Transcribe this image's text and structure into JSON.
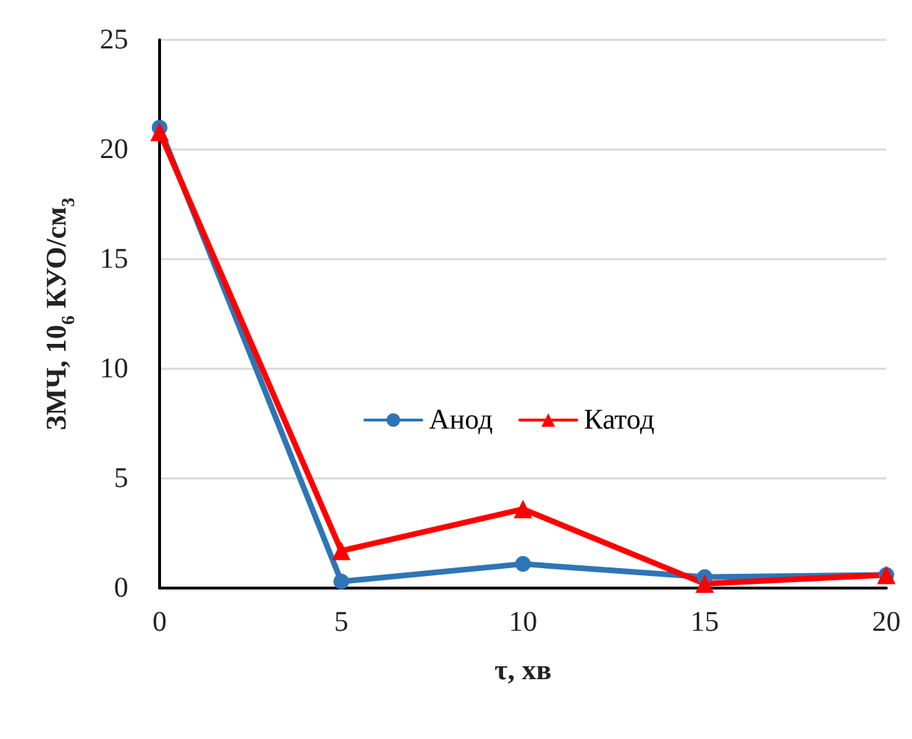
{
  "chart_data": {
    "type": "line",
    "xlabel": "τ, хв",
    "ylabel": "ЗМЧ, 10$_{6}$ КУО/см$_{3}$",
    "x": [
      0,
      5,
      10,
      15,
      20
    ],
    "series": [
      {
        "name": "Анод",
        "color": "#2e75b6",
        "values": [
          21,
          0.3,
          1.1,
          0.5,
          0.6
        ],
        "marker": "circle"
      },
      {
        "name": "Катод",
        "color": "#ff0000",
        "values": [
          20.8,
          1.7,
          3.6,
          0.2,
          0.6
        ],
        "marker": "triangle"
      }
    ],
    "xlim": [
      0,
      20
    ],
    "xticks": [
      0,
      5,
      10,
      15,
      20
    ],
    "ylim": [
      0,
      25
    ],
    "yticks": [
      0,
      5,
      10,
      15,
      20,
      25
    ],
    "grid": "y",
    "legend": "center",
    "line_style": "solid"
  }
}
